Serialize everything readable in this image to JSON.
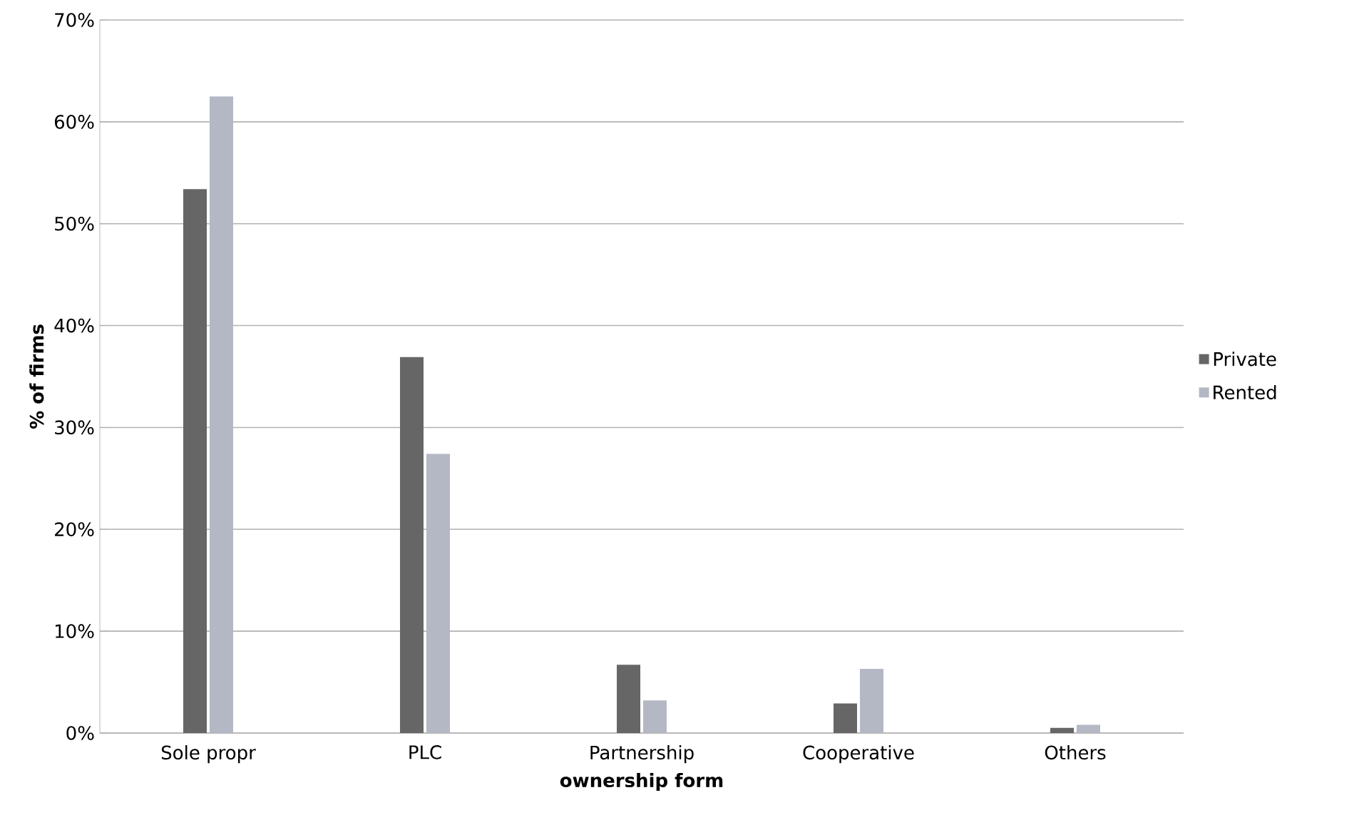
{
  "chart_data": {
    "type": "bar",
    "xlabel": "ownership form",
    "ylabel": "% of firms",
    "categories": [
      "Sole propr",
      "PLC",
      "Partnership",
      "Cooperative",
      "Others"
    ],
    "series": [
      {
        "name": "Private",
        "color": "#666666",
        "values": [
          53.4,
          36.9,
          6.7,
          2.9,
          0.5
        ]
      },
      {
        "name": "Rented",
        "color": "#b4b8c4",
        "values": [
          62.5,
          27.4,
          3.2,
          6.3,
          0.8
        ]
      }
    ],
    "ylim": [
      0,
      70
    ],
    "yticks": [
      {
        "value": 0,
        "label": "0%"
      },
      {
        "value": 10,
        "label": "10%"
      },
      {
        "value": 20,
        "label": "20%"
      },
      {
        "value": 30,
        "label": "30%"
      },
      {
        "value": 40,
        "label": "40%"
      },
      {
        "value": 50,
        "label": "50%"
      },
      {
        "value": 60,
        "label": "60%"
      },
      {
        "value": 70,
        "label": "70%"
      }
    ],
    "grid": "y",
    "legend": "right"
  }
}
